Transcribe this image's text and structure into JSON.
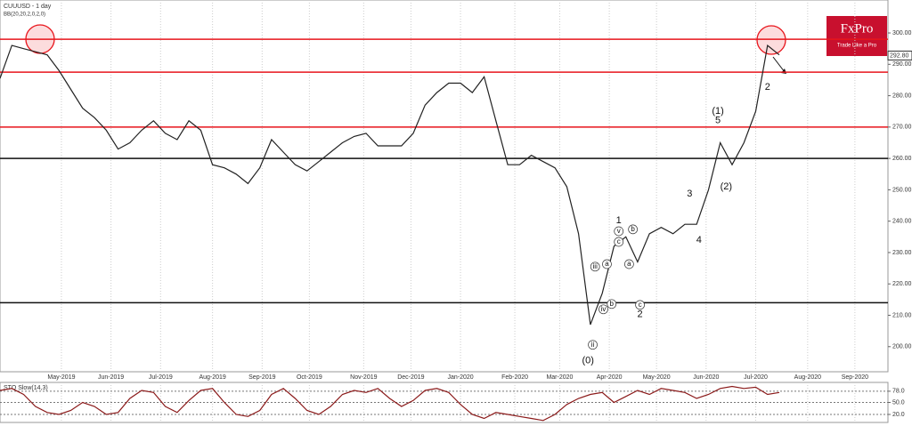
{
  "chart_data": [
    {
      "type": "line",
      "title": "CUUUSD - 1 day",
      "subtitle": "BB(20,20,2,0,2,0)",
      "x": [
        0,
        5,
        10,
        15,
        20,
        25,
        30,
        35,
        40,
        45,
        50,
        55,
        60,
        65,
        70,
        75,
        80,
        85,
        90,
        95,
        100,
        105,
        110,
        115,
        120,
        125,
        130,
        135,
        140,
        145,
        150,
        155,
        160,
        165,
        170,
        175,
        180,
        185,
        190,
        195,
        200,
        205,
        210,
        215,
        220,
        225,
        230,
        235,
        240,
        245,
        250,
        255,
        260,
        265,
        270,
        275,
        280,
        285,
        290,
        295,
        300,
        305,
        310,
        315,
        320,
        325,
        330
      ],
      "series": [
        {
          "name": "CUUUSD",
          "color": "#222",
          "values": [
            285.5,
            296,
            295,
            294,
            293,
            288,
            282,
            276,
            273,
            269,
            263,
            265,
            269,
            272,
            268,
            266,
            272,
            269,
            258,
            257,
            255,
            252,
            257,
            266,
            262,
            258,
            256,
            259,
            262,
            265,
            267,
            268,
            264,
            264,
            264,
            268,
            277,
            281,
            284,
            284,
            281,
            286,
            272,
            258,
            258,
            261,
            259,
            257,
            251,
            236,
            207,
            217,
            232,
            235,
            227,
            236,
            238,
            236,
            239,
            239,
            250,
            265,
            258,
            265,
            275,
            296,
            293
          ]
        }
      ],
      "xlim": [
        0,
        376
      ],
      "ylim": [
        192,
        310.5
      ],
      "xticks": [
        {
          "value": 26,
          "label": "May-2019"
        },
        {
          "value": 47,
          "label": "Jun-2019"
        },
        {
          "value": 68,
          "label": "Jul-2019"
        },
        {
          "value": 90,
          "label": "Aug-2019"
        },
        {
          "value": 111,
          "label": "Sep-2019"
        },
        {
          "value": 131,
          "label": "Oct-2019"
        },
        {
          "value": 154,
          "label": "Nov-2019"
        },
        {
          "value": 174,
          "label": "Dec-2019"
        },
        {
          "value": 195,
          "label": "Jan-2020"
        },
        {
          "value": 218,
          "label": "Feb-2020"
        },
        {
          "value": 237,
          "label": "Mar-2020"
        },
        {
          "value": 258,
          "label": "Apr-2020"
        },
        {
          "value": 278,
          "label": "May-2020"
        },
        {
          "value": 299,
          "label": "Jun-2020"
        },
        {
          "value": 320,
          "label": "Jul-2020"
        },
        {
          "value": 342,
          "label": "Aug-2020"
        },
        {
          "value": 362,
          "label": "Sep-2020"
        }
      ],
      "yticks": [
        {
          "value": 200,
          "label": "200.00"
        },
        {
          "value": 210,
          "label": "210.00"
        },
        {
          "value": 220,
          "label": "220.00"
        },
        {
          "value": 230,
          "label": "230.00"
        },
        {
          "value": 240,
          "label": "240.00"
        },
        {
          "value": 250,
          "label": "250.00"
        },
        {
          "value": 260,
          "label": "260.00"
        },
        {
          "value": 270,
          "label": "270.00"
        },
        {
          "value": 280,
          "label": "280.00"
        },
        {
          "value": 290,
          "label": "290.00"
        },
        {
          "value": 300,
          "label": "300.00"
        }
      ],
      "last_price": {
        "value": 292.8,
        "label": "292.80"
      },
      "levels": [
        {
          "value": 298,
          "color": "#e8141b"
        },
        {
          "value": 287.5,
          "color": "#e8141b"
        },
        {
          "value": 270,
          "color": "#e8141b"
        },
        {
          "value": 260,
          "color": "#111"
        },
        {
          "value": 214,
          "color": "#111"
        }
      ],
      "annotations": [
        {
          "text": "(1)",
          "x": 304,
          "y": 275
        },
        {
          "text": "5",
          "x": 304,
          "y": 272
        },
        {
          "text": "3",
          "x": 292,
          "y": 248.7
        },
        {
          "text": "4",
          "x": 296,
          "y": 234
        },
        {
          "text": "(2)",
          "x": 307.5,
          "y": 251
        },
        {
          "text": "1",
          "x": 262,
          "y": 240.2
        },
        {
          "text": "2",
          "x": 271,
          "y": 210.2
        },
        {
          "text": "(0)",
          "x": 249,
          "y": 195.5
        },
        {
          "text": "2",
          "x": 325,
          "y": 282.7
        },
        {
          "text": "v",
          "x": 262,
          "y": 236.8,
          "circled": true
        },
        {
          "text": "c",
          "x": 262,
          "y": 233.4,
          "circled": true
        },
        {
          "text": "b",
          "x": 268,
          "y": 237.4,
          "circled": true
        },
        {
          "text": "a",
          "x": 266.4,
          "y": 226.3,
          "circled": true
        },
        {
          "text": "a",
          "x": 257,
          "y": 226.3,
          "circled": true
        },
        {
          "text": "iii",
          "x": 252,
          "y": 225.5,
          "circled": true
        },
        {
          "text": "iv",
          "x": 255.5,
          "y": 211.9,
          "circled": true
        },
        {
          "text": "b",
          "x": 259,
          "y": 213.6,
          "circled": true
        },
        {
          "text": "c",
          "x": 271,
          "y": 213.3,
          "circled": true
        },
        {
          "text": "ii",
          "x": 251,
          "y": 200.6,
          "circled": true
        }
      ],
      "grid": true
    },
    {
      "type": "line",
      "title": "STO Slow(14,3)",
      "x": [
        0,
        5,
        10,
        15,
        20,
        25,
        30,
        35,
        40,
        45,
        50,
        55,
        60,
        65,
        70,
        75,
        80,
        85,
        90,
        95,
        100,
        105,
        110,
        115,
        120,
        125,
        130,
        135,
        140,
        145,
        150,
        155,
        160,
        165,
        170,
        175,
        180,
        185,
        190,
        195,
        200,
        205,
        210,
        215,
        220,
        225,
        230,
        235,
        240,
        245,
        250,
        255,
        260,
        265,
        270,
        275,
        280,
        285,
        290,
        295,
        300,
        305,
        310,
        315,
        320,
        325,
        330
      ],
      "series": [
        {
          "name": "STO",
          "color": "#8b1a1a",
          "values": [
            80,
            85,
            70,
            40,
            25,
            20,
            30,
            50,
            40,
            20,
            25,
            60,
            80,
            75,
            40,
            25,
            55,
            80,
            85,
            50,
            20,
            15,
            30,
            70,
            85,
            60,
            30,
            20,
            40,
            70,
            80,
            75,
            85,
            60,
            40,
            55,
            80,
            85,
            75,
            45,
            20,
            10,
            25,
            20,
            15,
            10,
            5,
            20,
            45,
            60,
            70,
            75,
            50,
            65,
            80,
            70,
            85,
            80,
            75,
            60,
            70,
            85,
            90,
            85,
            88,
            70,
            75
          ]
        }
      ],
      "xlim": [
        0,
        376
      ],
      "ylim": [
        0,
        100
      ],
      "yticks": [
        {
          "value": 20,
          "label": "20.0"
        },
        {
          "value": 50,
          "label": "50.0"
        },
        {
          "value": 78,
          "label": "78.0"
        }
      ],
      "grid": true
    }
  ],
  "logo": {
    "name": "FxPro",
    "tagline": "Trade Like a Pro"
  }
}
